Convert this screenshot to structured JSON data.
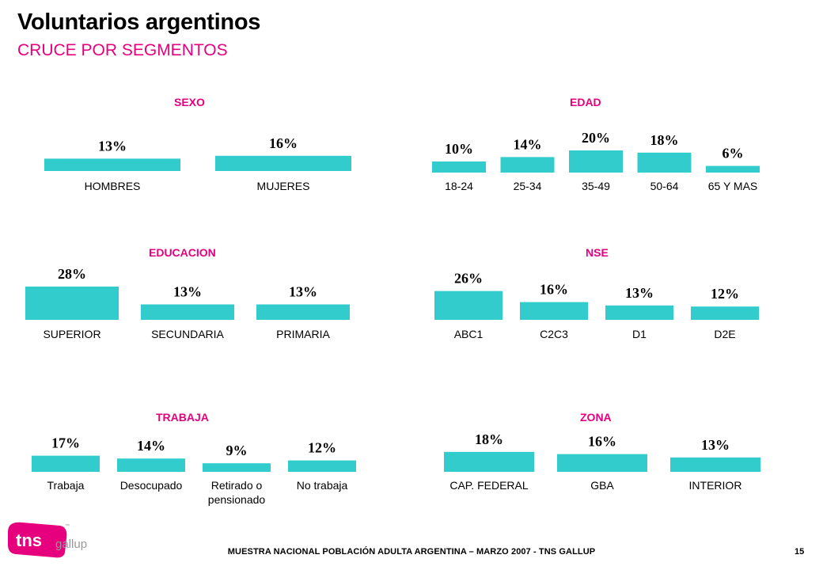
{
  "title": "Voluntarios argentinos",
  "subtitle": "CRUCE POR SEGMENTOS",
  "footer": "MUESTRA NACIONAL POBLACIÓN ADULTA ARGENTINA – MARZO 2007 - TNS GALLUP",
  "page_number": "15",
  "logo": {
    "text_tns": "tns",
    "text_gallup": "gallup",
    "tm": "™"
  },
  "colors": {
    "bar": "#33cccc",
    "accent": "#e6007e",
    "logo_bg": "#e6007e"
  },
  "chart_data": [
    {
      "type": "bar",
      "title": "SEXO",
      "categories": [
        "HOMBRES",
        "MUJERES"
      ],
      "values": [
        13,
        16
      ],
      "labels": [
        "13%",
        "16%"
      ],
      "ylim": [
        0,
        30
      ]
    },
    {
      "type": "bar",
      "title": "EDAD",
      "categories": [
        "18-24",
        "25-34",
        "35-49",
        "50-64",
        "65 Y MAS"
      ],
      "values": [
        10,
        14,
        20,
        18,
        6
      ],
      "labels": [
        "10%",
        "14%",
        "20%",
        "18%",
        "6%"
      ],
      "ylim": [
        0,
        30
      ]
    },
    {
      "type": "bar",
      "title": "EDUCACION",
      "categories": [
        "SUPERIOR",
        "SECUNDARIA",
        "PRIMARIA"
      ],
      "values": [
        28,
        13,
        13
      ],
      "labels": [
        "28%",
        "13%",
        "13%"
      ],
      "ylim": [
        0,
        30
      ]
    },
    {
      "type": "bar",
      "title": "NSE",
      "categories": [
        "ABC1",
        "C2C3",
        "D1",
        "D2E"
      ],
      "values": [
        26,
        16,
        13,
        12
      ],
      "labels": [
        "26%",
        "16%",
        "13%",
        "12%"
      ],
      "ylim": [
        0,
        30
      ]
    },
    {
      "type": "bar",
      "title": "TRABAJA",
      "categories": [
        "Trabaja",
        "Desocupado",
        "Retirado o pensionado",
        "No trabaja"
      ],
      "values": [
        17,
        14,
        9,
        12
      ],
      "labels": [
        "17%",
        "14%",
        "9%",
        "12%"
      ],
      "ylim": [
        0,
        30
      ]
    },
    {
      "type": "bar",
      "title": "ZONA",
      "categories": [
        "CAP. FEDERAL",
        "GBA",
        "INTERIOR"
      ],
      "values": [
        18,
        16,
        13
      ],
      "labels": [
        "18%",
        "16%",
        "13%"
      ],
      "ylim": [
        0,
        30
      ]
    }
  ]
}
